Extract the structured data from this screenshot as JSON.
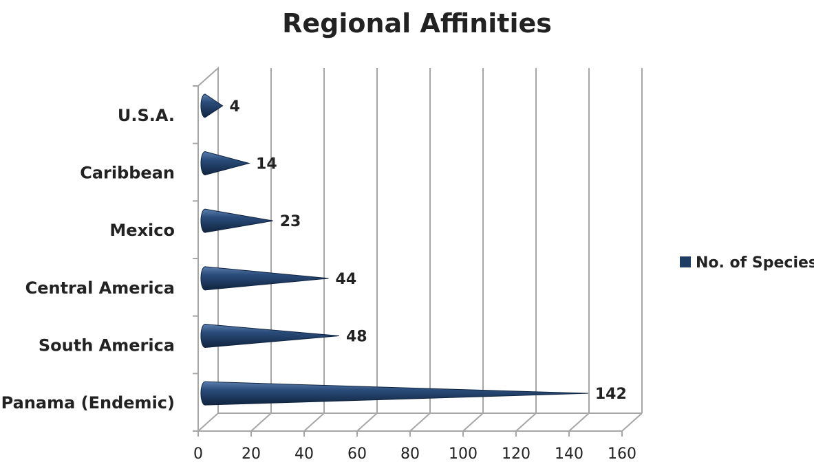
{
  "chart_data": {
    "type": "bar",
    "title": "Regional Affinities",
    "categories": [
      "Panama (Endemic)",
      "South America",
      "Central America",
      "Mexico",
      "Caribbean",
      "U.S.A."
    ],
    "series": [
      {
        "name": "No. of Species",
        "values": [
          142,
          48,
          44,
          23,
          14,
          4
        ],
        "color": "#1f3c63"
      }
    ],
    "xlim": [
      0,
      160
    ],
    "xticks": [
      "0",
      "20",
      "40",
      "60",
      "80",
      "100",
      "120",
      "140",
      "160"
    ],
    "xlabel": "",
    "ylabel": "",
    "grid": true,
    "legend_position": "right",
    "orientation": "horizontal"
  },
  "colors": {
    "bar": "#1f3c63",
    "grid": "#a6a6a6",
    "text": "#222222"
  }
}
